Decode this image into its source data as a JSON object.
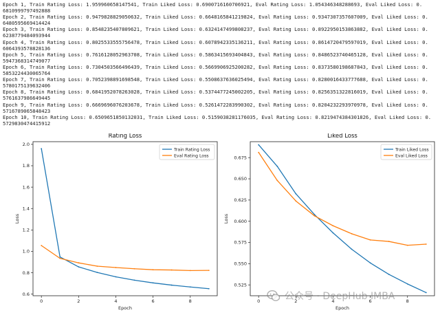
{
  "log_lines": [
    "Epoch 1, Train Rating Loss: 1.959960658147541, Train Liked Loss: 0.6900716160706921, Eval Rating Loss: 1.054346348288693, Eval Liked Loss: 0.",
    "6810999797492888",
    "Epoch 2, Train Rating Loss: 0.9479828829050632, Train Liked Loss: 0.6648165841219824, Eval Rating Loss: 0.9347307357607009, Eval Liked Loss: 0.",
    "6480595669414424",
    "Epoch 3, Train Rating Loss: 0.8548235407809621, Train Liked Loss: 0.6324147499808237, Eval Rating Loss: 0.8922950153863882, Eval Liked Loss: 0.",
    "6238779484093944",
    "Epoch 4, Train Rating Loss: 0.8025533555756478, Train Liked Loss: 0.6078942335136211, Eval Rating Loss: 0.8614720479597019, Eval Liked Loss: 0.",
    "6064393578828136",
    "Epoch 5, Train Rating Loss: 0.7616128052963708, Train Liked Loss: 0.5863415693404843, Eval Rating Loss: 0.8486523740465128, Eval Liked Loss: 0.",
    "5947368314749077",
    "Epoch 6, Train Rating Loss: 0.7304503566496439, Train Liked Loss: 0.5669906925200282, Eval Rating Loss: 0.8373580198687843, Eval Liked Loss: 0.",
    "5853224430065764",
    "Epoch 7, Train Rating Loss: 0.7052398891698548, Train Liked Loss: 0.5508637636025494, Eval Rating Loss: 0.8280016433777688, Eval Liked Loss: 0.",
    "5780175139632406",
    "Epoch 8, Train Rating Loss: 0.6841952078263028, Train Liked Loss: 0.5374477245002205, Eval Rating Loss: 0.8256351322816019, Eval Liked Loss: 0.",
    "5761637986649445",
    "Epoch 9, Train Rating Loss: 0.6669696076203678, Train Liked Loss: 0.5261472283990302, Eval Rating Loss: 0.8204232293970978, Eval Liked Loss: 0.",
    "5716789065848423",
    "Epoch 10, Train Rating Loss: 0.6509651850132031, Train Liked Loss: 0.5159038281176035, Eval Rating Loss: 0.8219474384301826, Eval Liked Loss: 0.",
    "5729830474415912"
  ],
  "watermark": {
    "text": "公众号 · DeepHub IMBA",
    "icon": "wechat-icon"
  },
  "chart_data": [
    {
      "type": "line",
      "title": "Rating Loss",
      "xlabel": "Epoch",
      "ylabel": "Loss",
      "x": [
        0,
        1,
        2,
        3,
        4,
        5,
        6,
        7,
        8,
        9
      ],
      "xlim": [
        -0.45,
        9.45
      ],
      "ylim": [
        0.585,
        2.025
      ],
      "xticks": [
        0,
        2,
        4,
        6,
        8
      ],
      "yticks": [
        0.6,
        0.8,
        1.0,
        1.2,
        1.4,
        1.6,
        1.8,
        2.0
      ],
      "ytick_labels": [
        "0.6",
        "0.8",
        "1.0",
        "1.2",
        "1.4",
        "1.6",
        "1.8",
        "2.0"
      ],
      "legend_position": "top-right",
      "grid": false,
      "series": [
        {
          "name": "Train Rating Loss",
          "color": "#1f77b4",
          "values": [
            1.96,
            0.948,
            0.8548,
            0.8026,
            0.7616,
            0.7305,
            0.7052,
            0.6842,
            0.667,
            0.651
          ]
        },
        {
          "name": "Eval Rating Loss",
          "color": "#ff7f0e",
          "values": [
            1.0543,
            0.9347,
            0.8923,
            0.8615,
            0.8487,
            0.8374,
            0.828,
            0.8256,
            0.8204,
            0.8219
          ]
        }
      ]
    },
    {
      "type": "line",
      "title": "Liked Loss",
      "xlabel": "Epoch",
      "ylabel": "Loss",
      "x": [
        0,
        1,
        2,
        3,
        4,
        5,
        6,
        7,
        8,
        9
      ],
      "xlim": [
        -0.45,
        9.45
      ],
      "ylim": [
        0.5122,
        0.6938
      ],
      "xticks": [
        0,
        2,
        4,
        6,
        8
      ],
      "yticks": [
        0.525,
        0.55,
        0.575,
        0.6,
        0.625,
        0.65,
        0.675
      ],
      "ytick_labels": [
        "0.525",
        "0.550",
        "0.575",
        "0.600",
        "0.625",
        "0.650",
        "0.675"
      ],
      "legend_position": "top-right",
      "grid": false,
      "series": [
        {
          "name": "Train Liked Loss",
          "color": "#1f77b4",
          "values": [
            0.6901,
            0.6648,
            0.6324,
            0.6079,
            0.5863,
            0.567,
            0.5509,
            0.5374,
            0.5261,
            0.5159
          ]
        },
        {
          "name": "Eval Liked Loss",
          "color": "#ff7f0e",
          "values": [
            0.6811,
            0.6481,
            0.6239,
            0.6064,
            0.5947,
            0.5853,
            0.578,
            0.5762,
            0.5717,
            0.573
          ]
        }
      ]
    }
  ]
}
